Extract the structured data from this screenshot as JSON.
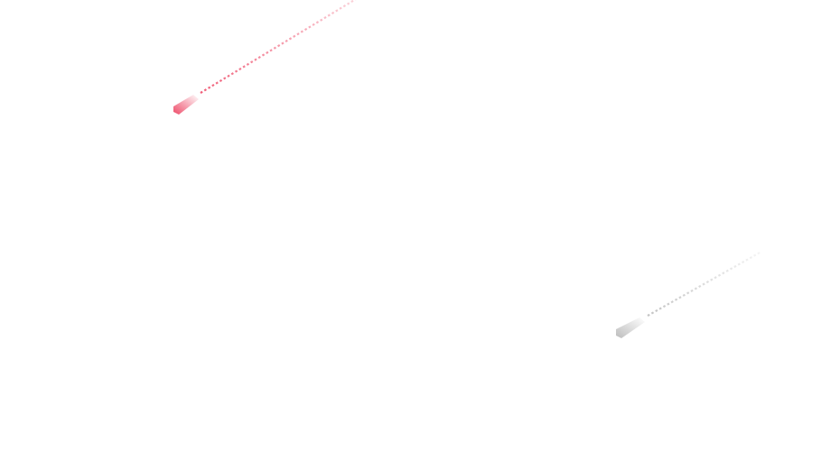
{
  "page": {
    "title": ""
  },
  "decorations": [
    {
      "name": "red-streak",
      "icon": "shooting-streak-icon",
      "color": "#ee4d6a"
    },
    {
      "name": "gray-streak",
      "icon": "shooting-streak-icon",
      "color": "#bdbdbd"
    }
  ]
}
